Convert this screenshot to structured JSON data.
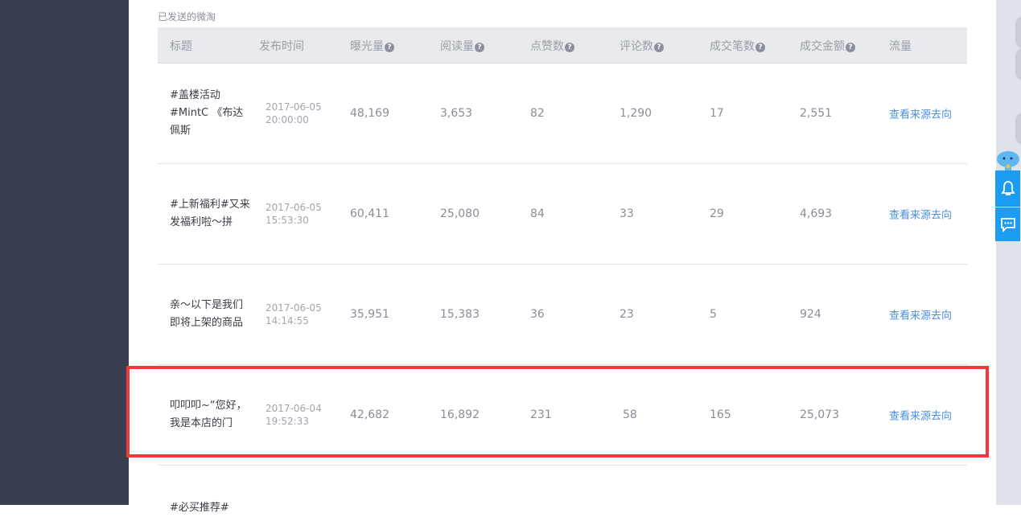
{
  "section_title": "已发送的微淘",
  "columns": [
    "标题",
    "发布时间",
    "曝光量",
    "阅读量",
    "点赞数",
    "评论数",
    "成交笔数",
    "成交金额",
    "流量"
  ],
  "help_icon": "?",
  "rows": [
    {
      "title": "#盖楼活动#MintC 《布达佩斯",
      "date": "2017-06-05",
      "time": "20:00:00",
      "exposure": "48,169",
      "reads": "3,653",
      "likes": "82",
      "comments": "1,290",
      "orders": "17",
      "amount": "2,551",
      "link": "查看来源去向"
    },
    {
      "title": "#上新福利#又来发福利啦～拼",
      "date": "2017-06-05",
      "time": "15:53:30",
      "exposure": "60,411",
      "reads": "25,080",
      "likes": "84",
      "comments": "33",
      "orders": "29",
      "amount": "4,693",
      "link": "查看来源去向"
    },
    {
      "title": "亲～以下是我们即将上架的商品",
      "date": "2017-06-05",
      "time": "14:14:55",
      "exposure": "35,951",
      "reads": "15,383",
      "likes": "36",
      "comments": "23",
      "orders": "5",
      "amount": "924",
      "link": "查看来源去向"
    },
    {
      "title": "叩叩叩~“您好，我是本店的门",
      "date": "2017-06-04",
      "time": "19:52:33",
      "exposure": "42,682",
      "reads": "16,892",
      "likes": "231",
      "comments": "58",
      "orders": "165",
      "amount": "25,073",
      "link": "查看来源去向"
    },
    {
      "title": "#必买推荐#",
      "date": "",
      "time": "",
      "exposure": "",
      "reads": "",
      "likes": "",
      "comments": "",
      "orders": "",
      "amount": "",
      "link": ""
    }
  ],
  "colors": {
    "sidebar": "#393e51",
    "highlight": "#f53739",
    "link": "#4a8fe0",
    "tool": "#1c9cf2"
  },
  "tools": [
    "mascot-icon",
    "bell-icon",
    "chat-icon"
  ]
}
